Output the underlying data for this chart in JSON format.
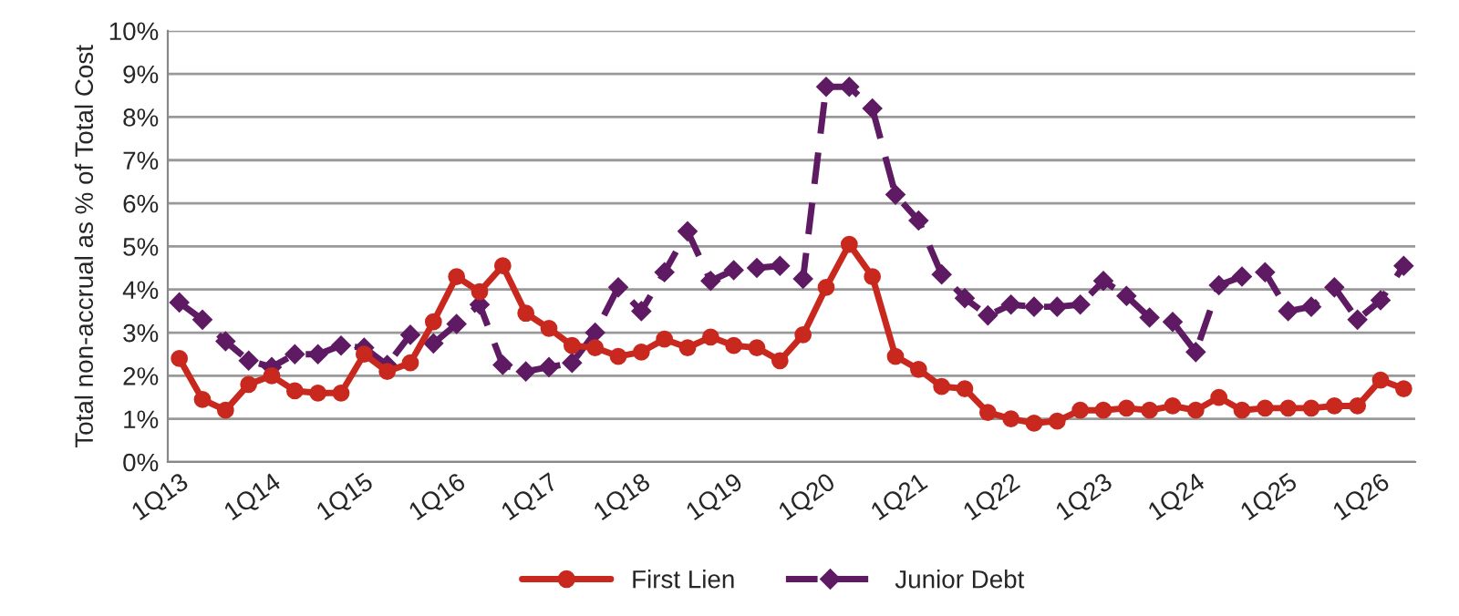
{
  "chart_data": {
    "type": "line",
    "ylabel": "Total non-accrual as % of Total Cost",
    "categories": [
      "1Q13",
      null,
      null,
      null,
      "1Q14",
      null,
      null,
      null,
      "1Q15",
      null,
      null,
      null,
      "1Q16",
      null,
      null,
      null,
      "1Q17",
      null,
      null,
      null,
      "1Q18",
      null,
      null,
      null,
      "1Q19",
      null,
      null,
      null,
      "1Q20",
      null,
      null,
      null,
      "1Q21",
      null,
      null,
      null,
      "1Q22",
      null,
      null,
      null,
      "1Q23",
      null,
      null,
      null,
      "1Q24",
      null,
      null,
      null,
      "1Q25",
      null,
      null,
      null,
      "1Q26",
      null
    ],
    "series": [
      {
        "name": "First Lien",
        "color": "#c8281e",
        "marker": "circle",
        "line_style": "solid",
        "values": [
          2.4,
          1.45,
          1.2,
          1.8,
          2.0,
          1.65,
          1.6,
          1.6,
          2.5,
          2.1,
          2.3,
          3.25,
          4.3,
          3.95,
          4.55,
          3.45,
          3.1,
          2.7,
          2.65,
          2.45,
          2.55,
          2.85,
          2.65,
          2.9,
          2.7,
          2.65,
          2.35,
          2.95,
          4.05,
          5.05,
          4.3,
          2.45,
          2.15,
          1.75,
          1.7,
          1.15,
          1.0,
          0.9,
          0.95,
          1.2,
          1.2,
          1.25,
          1.2,
          1.3,
          1.2,
          1.5,
          1.2,
          1.25,
          1.25,
          1.25,
          1.3,
          1.3,
          1.9,
          1.7
        ]
      },
      {
        "name": "Junior Debt",
        "color": "#5e1a62",
        "marker": "diamond",
        "line_style": "dashed",
        "values": [
          3.7,
          3.3,
          2.8,
          2.35,
          2.2,
          2.5,
          2.5,
          2.7,
          2.65,
          2.25,
          2.95,
          2.75,
          3.2,
          3.65,
          2.25,
          2.1,
          2.2,
          2.3,
          3.0,
          4.05,
          3.5,
          4.4,
          5.35,
          4.2,
          4.45,
          4.5,
          4.55,
          4.25,
          8.7,
          8.7,
          8.2,
          6.2,
          5.6,
          4.35,
          3.8,
          3.4,
          3.65,
          3.6,
          3.6,
          3.65,
          4.2,
          3.85,
          3.35,
          3.25,
          2.55,
          4.1,
          4.3,
          4.4,
          3.5,
          3.6,
          4.05,
          3.3,
          3.75,
          4.55
        ]
      }
    ],
    "ylim": [
      0,
      10
    ],
    "yticks": [
      {
        "value": 0,
        "label": "0%"
      },
      {
        "value": 1,
        "label": "1%"
      },
      {
        "value": 2,
        "label": "2%"
      },
      {
        "value": 3,
        "label": "3%"
      },
      {
        "value": 4,
        "label": "4%"
      },
      {
        "value": 5,
        "label": "5%"
      },
      {
        "value": 6,
        "label": "6%"
      },
      {
        "value": 7,
        "label": "7%"
      },
      {
        "value": 8,
        "label": "8%"
      },
      {
        "value": 9,
        "label": "9%"
      },
      {
        "value": 10,
        "label": "10%"
      }
    ],
    "grid": "y",
    "legend": "bottom"
  }
}
